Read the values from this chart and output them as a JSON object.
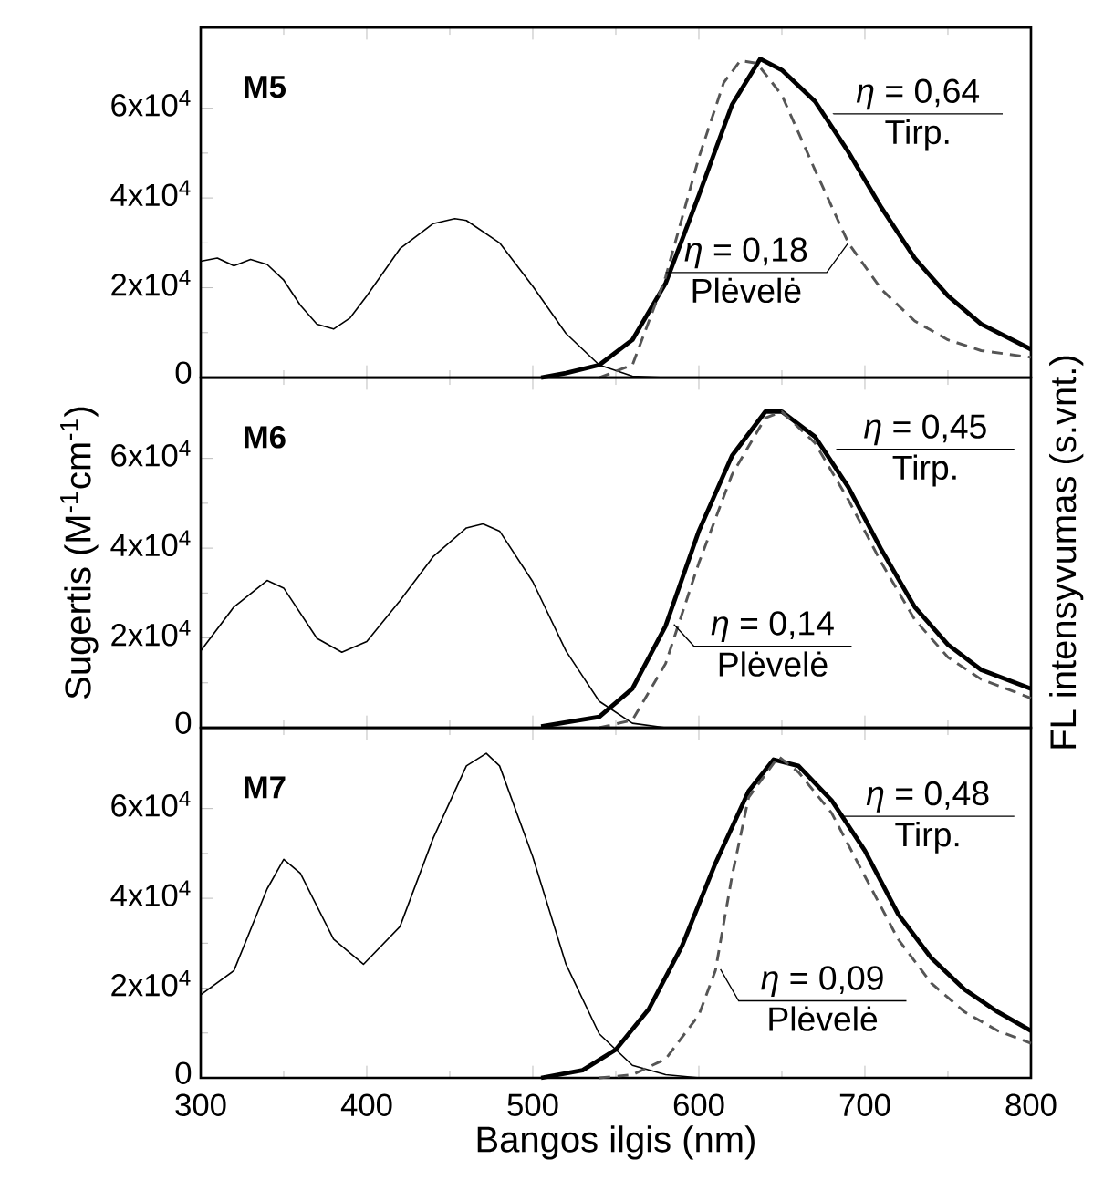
{
  "chart_data": [
    {
      "type": "line",
      "title": "M5",
      "xlim": [
        300,
        800
      ],
      "ylim": [
        0,
        78000
      ],
      "xticks": [
        300,
        400,
        500,
        600,
        700,
        800
      ],
      "yticks": [
        0,
        {
          "value": 20000,
          "label": "2x10$^{4}$"
        },
        {
          "value": 40000,
          "label": "4x10$^{4}$"
        },
        {
          "value": 60000,
          "label": "6x10$^{4}$"
        }
      ],
      "tick_labels": "y",
      "series": [
        {
          "color": "#000000",
          "line_style": "solid",
          "x": [
            300,
            310,
            320,
            330,
            340,
            350,
            360,
            370,
            380,
            390,
            400,
            420,
            440,
            453,
            460,
            480,
            500,
            520,
            540,
            560,
            580
          ],
          "values": [
            25900,
            26600,
            24900,
            26300,
            25200,
            21700,
            16100,
            11900,
            10800,
            13300,
            18200,
            28700,
            34300,
            35400,
            35000,
            30000,
            20300,
            9800,
            2800,
            300,
            0
          ]
        },
        {
          "color": "#000000",
          "line_style": "solid",
          "x": [
            505,
            520,
            540,
            560,
            580,
            600,
            620,
            637,
            650,
            670,
            690,
            710,
            730,
            750,
            770,
            800
          ],
          "values": [
            0,
            1000,
            2800,
            8400,
            21000,
            40600,
            60800,
            71000,
            68500,
            61500,
            50300,
            37800,
            26600,
            18200,
            11900,
            6300
          ]
        },
        {
          "color": "#555555",
          "line_style": "dashed",
          "x": [
            540,
            560,
            580,
            600,
            615,
            625,
            635,
            650,
            670,
            690,
            710,
            730,
            750,
            770,
            800
          ],
          "values": [
            0,
            2800,
            22400,
            49000,
            65700,
            70600,
            70000,
            62900,
            46200,
            30000,
            19600,
            12600,
            8400,
            6000,
            4500
          ]
        }
      ],
      "annotations": [
        {
          "text": "*η* = 0,64",
          "x": 681,
          "y": 58700
        },
        "Tirp.",
        {
          "text": "*η* = 0,18",
          "x": 690,
          "y": 30000
        },
        "Plėvelė"
      ]
    },
    {
      "type": "line",
      "title": "M6",
      "xlim": [
        300,
        800
      ],
      "ylim": [
        0,
        78000
      ],
      "xticks": [
        300,
        400,
        500,
        600,
        700,
        800
      ],
      "yticks": [
        0,
        {
          "value": 20000,
          "label": "2x10$^{4}$"
        },
        {
          "value": 40000,
          "label": "4x10$^{4}$"
        },
        {
          "value": 60000,
          "label": "6x10$^{4}$"
        }
      ],
      "tick_labels": "y",
      "ylabel": "Sugertis (M$^{-1}$cm$^{-1}$)",
      "y2label": "FL intensyvumas (s.vnt.)",
      "series": [
        {
          "color": "#000000",
          "line_style": "solid",
          "x": [
            300,
            320,
            340,
            350,
            370,
            385,
            400,
            420,
            440,
            460,
            470,
            480,
            500,
            520,
            540,
            560,
            580
          ],
          "values": [
            17100,
            26900,
            32800,
            31100,
            19900,
            16800,
            19200,
            28300,
            38100,
            44500,
            45400,
            43800,
            32500,
            17100,
            5900,
            1000,
            0
          ]
        },
        {
          "color": "#000000",
          "line_style": "solid",
          "x": [
            505,
            540,
            560,
            580,
            600,
            620,
            640,
            650,
            670,
            690,
            710,
            730,
            750,
            770,
            800
          ],
          "values": [
            300,
            2400,
            8700,
            22700,
            43800,
            60600,
            70400,
            70400,
            64800,
            53600,
            39600,
            26900,
            18500,
            12900,
            8700
          ]
        },
        {
          "color": "#555555",
          "line_style": "dashed",
          "x": [
            540,
            560,
            580,
            600,
            620,
            640,
            650,
            670,
            690,
            710,
            730,
            750,
            770,
            800
          ],
          "values": [
            0,
            1700,
            14300,
            36700,
            56400,
            69000,
            70400,
            63400,
            50800,
            36700,
            24100,
            15700,
            10800,
            6600
          ]
        }
      ],
      "annotations": [
        {
          "text": "*η* = 0,45",
          "x": 683,
          "y": 62000
        },
        "Tirp.",
        {
          "text": "*η* = 0,14",
          "x": 585,
          "y": 23000
        },
        "Plėvelė"
      ]
    },
    {
      "type": "line",
      "title": "M7",
      "xlim": [
        300,
        800
      ],
      "ylim": [
        0,
        78000
      ],
      "xticks": [
        300,
        400,
        500,
        600,
        700,
        800
      ],
      "yticks": [
        0,
        {
          "value": 20000,
          "label": "2x10$^{4}$"
        },
        {
          "value": 40000,
          "label": "4x10$^{4}$"
        },
        {
          "value": 60000,
          "label": "6x10$^{4}$"
        }
      ],
      "xlabel": "Bangos ilgis (nm)",
      "series": [
        {
          "color": "#000000",
          "line_style": "solid",
          "x": [
            300,
            320,
            340,
            350,
            360,
            380,
            398,
            420,
            440,
            460,
            472,
            480,
            500,
            520,
            540,
            560,
            580,
            600
          ],
          "values": [
            18500,
            23900,
            42100,
            48700,
            45600,
            30900,
            25300,
            33700,
            53400,
            69500,
            72300,
            69500,
            49200,
            25300,
            9800,
            2800,
            700,
            0
          ]
        },
        {
          "color": "#000000",
          "line_style": "solid",
          "x": [
            505,
            530,
            550,
            570,
            590,
            610,
            630,
            645,
            660,
            680,
            700,
            720,
            740,
            760,
            780,
            800
          ],
          "values": [
            0,
            1700,
            6300,
            15400,
            29500,
            47800,
            63900,
            70900,
            69500,
            61800,
            50600,
            36500,
            26700,
            19700,
            14700,
            10500
          ]
        },
        {
          "color": "#555555",
          "line_style": "dashed",
          "x": [
            540,
            560,
            580,
            600,
            610,
            620,
            630,
            648,
            660,
            680,
            700,
            720,
            740,
            760,
            780,
            800
          ],
          "values": [
            0,
            700,
            4200,
            14000,
            23900,
            45000,
            62500,
            71600,
            68100,
            59000,
            44900,
            30900,
            21100,
            14700,
            10500,
            7700
          ]
        }
      ],
      "annotations": [
        {
          "text": "*η* = 0,48",
          "x": 686,
          "y": 58300
        },
        "Tirp.",
        {
          "text": "*η* = 0,09",
          "x": 613,
          "y": 24200
        },
        "Plėvelė"
      ]
    }
  ]
}
